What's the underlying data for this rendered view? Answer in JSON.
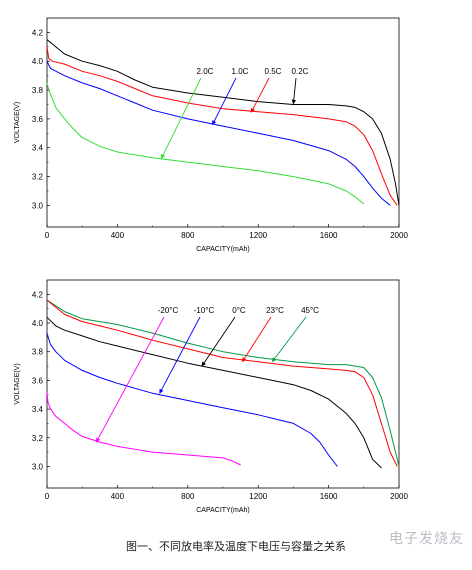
{
  "chart_data": [
    {
      "type": "line",
      "xlabel": "CAPACITY(mAh)",
      "ylabel": "VOLTAGE(V)",
      "xlim": [
        0,
        2000
      ],
      "ylim": [
        2.85,
        4.3
      ],
      "xticks": [
        "0",
        "400",
        "800",
        "1200",
        "1600",
        "2000"
      ],
      "yticks": [
        "3.0",
        "3.2",
        "3.4",
        "3.6",
        "3.8",
        "4.0",
        "4.2"
      ],
      "grid": false,
      "legend": "callout labels with arrows",
      "series": [
        {
          "name": "0.2C",
          "color": "#000000",
          "x": [
            0,
            100,
            200,
            300,
            400,
            500,
            600,
            800,
            1000,
            1200,
            1400,
            1500,
            1600,
            1700,
            1750,
            1800,
            1850,
            1900,
            1950,
            1980,
            2000
          ],
          "y": [
            4.15,
            4.05,
            4.0,
            3.97,
            3.93,
            3.87,
            3.82,
            3.78,
            3.75,
            3.72,
            3.7,
            3.7,
            3.7,
            3.69,
            3.68,
            3.65,
            3.6,
            3.5,
            3.32,
            3.15,
            3.0
          ]
        },
        {
          "name": "0.5C",
          "color": "#ff0000",
          "x": [
            0,
            10,
            30,
            100,
            200,
            300,
            400,
            500,
            600,
            800,
            1000,
            1200,
            1400,
            1600,
            1700,
            1750,
            1800,
            1850,
            1900,
            1950,
            1990
          ],
          "y": [
            4.1,
            4.02,
            4.0,
            3.98,
            3.93,
            3.9,
            3.86,
            3.81,
            3.76,
            3.71,
            3.67,
            3.65,
            3.63,
            3.6,
            3.58,
            3.55,
            3.49,
            3.38,
            3.22,
            3.07,
            3.0
          ]
        },
        {
          "name": "1.0C",
          "color": "#0000ff",
          "x": [
            0,
            20,
            100,
            200,
            300,
            400,
            500,
            600,
            800,
            1000,
            1200,
            1400,
            1600,
            1700,
            1750,
            1800,
            1850,
            1900,
            1950
          ],
          "y": [
            4.0,
            3.95,
            3.9,
            3.85,
            3.81,
            3.76,
            3.71,
            3.66,
            3.6,
            3.55,
            3.5,
            3.45,
            3.38,
            3.32,
            3.27,
            3.2,
            3.12,
            3.05,
            3.0
          ]
        },
        {
          "name": "2.0C",
          "color": "#33dd33",
          "x": [
            0,
            10,
            50,
            100,
            150,
            200,
            300,
            400,
            500,
            600,
            800,
            1000,
            1200,
            1400,
            1600,
            1700,
            1750,
            1800
          ],
          "y": [
            3.85,
            3.8,
            3.68,
            3.6,
            3.53,
            3.47,
            3.41,
            3.37,
            3.35,
            3.33,
            3.3,
            3.27,
            3.24,
            3.2,
            3.15,
            3.1,
            3.06,
            3.01
          ]
        }
      ]
    },
    {
      "type": "line",
      "xlabel": "CAPACITY(mAh)",
      "ylabel": "VOLTAGE(V)",
      "xlim": [
        0,
        2000
      ],
      "ylim": [
        2.85,
        4.3
      ],
      "xticks": [
        "0",
        "400",
        "800",
        "1200",
        "1600",
        "2000"
      ],
      "yticks": [
        "3.0",
        "3.2",
        "3.4",
        "3.6",
        "3.8",
        "4.0",
        "4.2"
      ],
      "grid": false,
      "legend": "callout labels with arrows",
      "series": [
        {
          "name": "45°C",
          "color": "#009944",
          "x": [
            0,
            100,
            200,
            300,
            400,
            600,
            800,
            1000,
            1200,
            1400,
            1600,
            1700,
            1800,
            1850,
            1900,
            1950,
            2000
          ],
          "y": [
            4.16,
            4.08,
            4.03,
            4.01,
            3.99,
            3.93,
            3.86,
            3.8,
            3.76,
            3.73,
            3.71,
            3.71,
            3.69,
            3.62,
            3.48,
            3.25,
            3.0
          ]
        },
        {
          "name": "23°C",
          "color": "#ff0000",
          "x": [
            0,
            100,
            200,
            300,
            400,
            600,
            800,
            1000,
            1200,
            1400,
            1600,
            1700,
            1750,
            1800,
            1850,
            1900,
            1950,
            1990
          ],
          "y": [
            4.16,
            4.06,
            4.01,
            3.98,
            3.95,
            3.88,
            3.82,
            3.76,
            3.73,
            3.7,
            3.68,
            3.67,
            3.66,
            3.62,
            3.5,
            3.3,
            3.1,
            3.0
          ]
        },
        {
          "name": "0°C",
          "color": "#000000",
          "x": [
            0,
            50,
            100,
            200,
            300,
            400,
            600,
            800,
            1000,
            1200,
            1400,
            1500,
            1600,
            1700,
            1750,
            1800,
            1850,
            1900
          ],
          "y": [
            4.04,
            3.98,
            3.95,
            3.91,
            3.87,
            3.84,
            3.78,
            3.72,
            3.67,
            3.62,
            3.57,
            3.53,
            3.47,
            3.37,
            3.3,
            3.2,
            3.05,
            2.99
          ]
        },
        {
          "name": "-10°C",
          "color": "#0000ff",
          "x": [
            0,
            20,
            50,
            100,
            200,
            300,
            400,
            600,
            800,
            1000,
            1200,
            1300,
            1400,
            1500,
            1550,
            1600,
            1650
          ],
          "y": [
            3.93,
            3.85,
            3.8,
            3.74,
            3.67,
            3.62,
            3.58,
            3.51,
            3.46,
            3.41,
            3.36,
            3.33,
            3.3,
            3.23,
            3.17,
            3.08,
            3.0
          ]
        },
        {
          "name": "-20°C",
          "color": "#ff00ff",
          "x": [
            0,
            5,
            20,
            50,
            100,
            150,
            200,
            300,
            400,
            600,
            800,
            1000,
            1050,
            1100
          ],
          "y": [
            3.52,
            3.45,
            3.4,
            3.35,
            3.3,
            3.25,
            3.21,
            3.17,
            3.14,
            3.1,
            3.08,
            3.06,
            3.04,
            3.01
          ]
        }
      ]
    }
  ],
  "caption": "图一、不同放电率及温度下电压与容量之关系",
  "watermark": "电子发烧友"
}
